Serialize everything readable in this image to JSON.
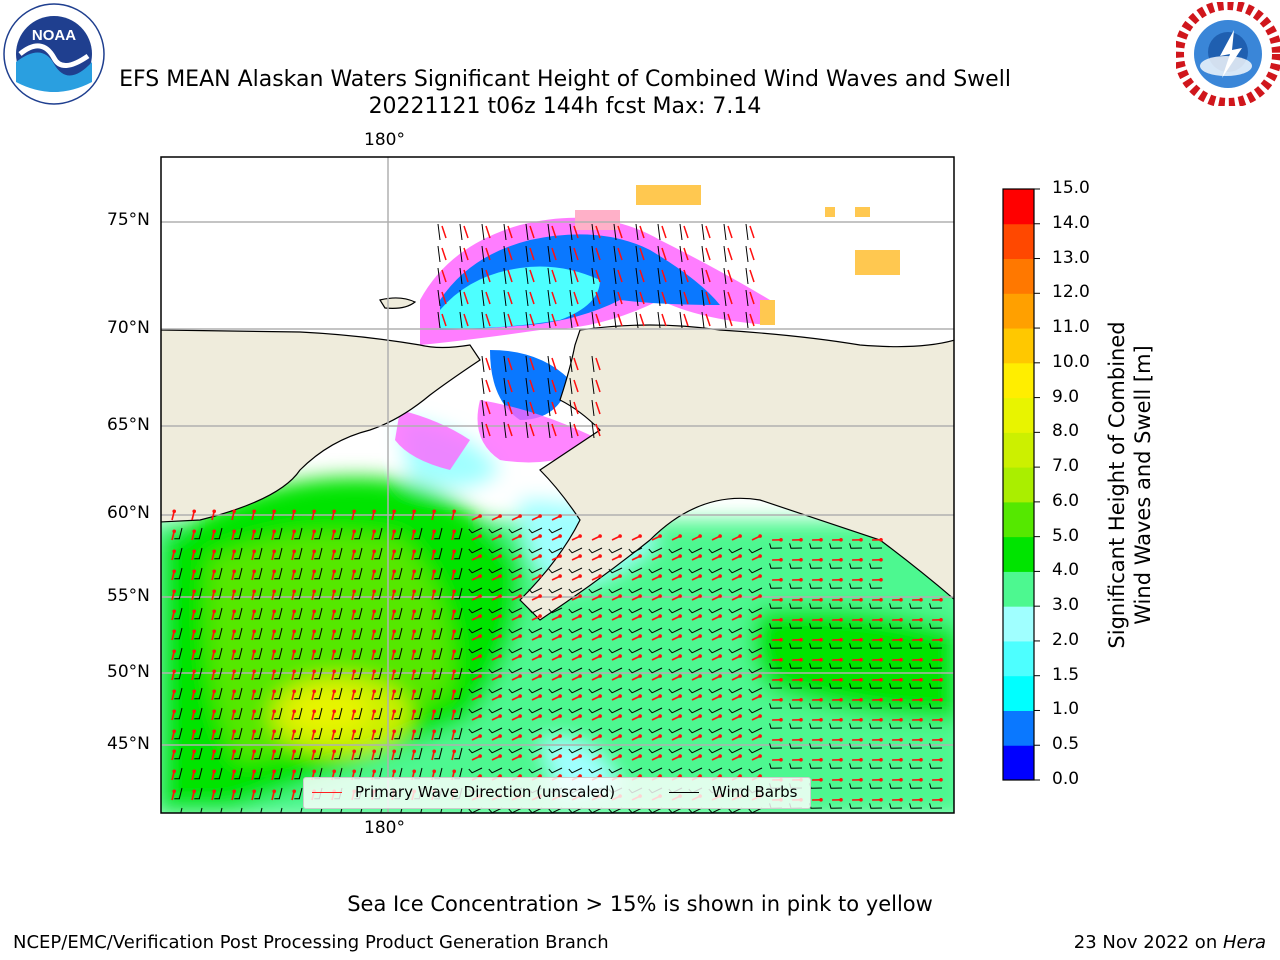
{
  "header": {
    "title_line1": "EFS MEAN Alaskan Waters Significant Height of Combined Wind Waves and Swell",
    "title_line2": "20221121 t06z 144h fcst   Max: 7.14",
    "noaa_logo_text": "NOAA",
    "noaa_ring_text": "NATIONAL OCEANIC AND ATMOSPHERIC ADMINISTRATION · U.S. DEPARTMENT OF COMMERCE",
    "nws_ring_text": "NATIONAL WEATHER SERVICE"
  },
  "map": {
    "top_lon_label": "180°",
    "bottom_lon_label": "180°",
    "lat_labels": [
      "75°N",
      "70°N",
      "65°N",
      "60°N",
      "55°N",
      "50°N",
      "45°N"
    ],
    "legend": {
      "wave_label": "Primary Wave Direction (unscaled)",
      "barb_label": "Wind Barbs"
    }
  },
  "colorbar": {
    "label_line1": "Significant Height of Combined",
    "label_line2": "Wind Waves and Swell [m]",
    "ticks": [
      "0.0",
      "0.5",
      "1.0",
      "1.5",
      "2.0",
      "3.0",
      "4.0",
      "5.0",
      "6.0",
      "7.0",
      "8.0",
      "9.0",
      "10.0",
      "11.0",
      "12.0",
      "13.0",
      "14.0",
      "15.0"
    ],
    "colors": [
      "#0000ff",
      "#0a78ff",
      "#00ffff",
      "#4dffff",
      "#a0ffff",
      "#4df890",
      "#00e400",
      "#55e800",
      "#aaee00",
      "#ccf000",
      "#e8f400",
      "#ffee00",
      "#ffc800",
      "#ffa000",
      "#ff7800",
      "#ff4800",
      "#ff0000"
    ]
  },
  "chart_data": {
    "type": "heatmap",
    "title": "EFS MEAN Alaskan Waters Significant Height of Combined Wind Waves and Swell",
    "subtitle": "20221121 t06z 144h fcst   Max: 7.14",
    "max_value": 7.14,
    "units": "m",
    "colorbar_range": [
      0.0,
      15.0
    ],
    "colorbar_levels": [
      0.0,
      0.5,
      1.0,
      1.5,
      2.0,
      3.0,
      4.0,
      5.0,
      6.0,
      7.0,
      8.0,
      9.0,
      10.0,
      11.0,
      12.0,
      13.0,
      14.0,
      15.0
    ],
    "lat_ticks": [
      "75°N",
      "70°N",
      "65°N",
      "60°N",
      "55°N",
      "50°N",
      "45°N"
    ],
    "lon_ticks": [
      "180°"
    ],
    "overlays": [
      "Primary Wave Direction (unscaled)",
      "Wind Barbs"
    ],
    "grid": true,
    "legend_placement": "bottom-center"
  },
  "footer": {
    "note": "Sea Ice Concentration > 15% is shown in pink to yellow",
    "left_credit": "NCEP/EMC/Verification Post Processing Product Generation Branch",
    "right_credit_prefix": "23 Nov 2022 on ",
    "right_credit_host": "Hera"
  }
}
